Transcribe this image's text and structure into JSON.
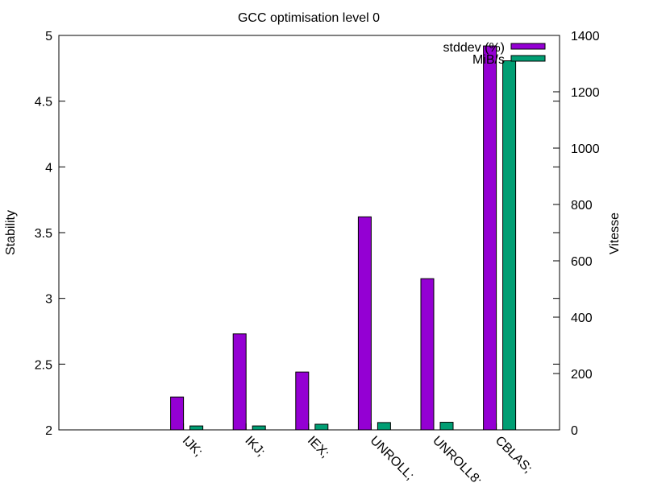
{
  "chart_data": {
    "type": "bar",
    "title": "GCC optimisation level 0",
    "ylabel": "Stability",
    "y2label": "Vitesse",
    "categories": [
      "IJK;",
      "IKJ;",
      "IEX;",
      "UNROLL;",
      "UNROLL8;",
      "CBLAS;"
    ],
    "ylim": [
      2,
      5
    ],
    "y2lim": [
      0,
      1400
    ],
    "yticks": [
      "2",
      "2.5",
      "3",
      "3.5",
      "4",
      "4.5",
      "5"
    ],
    "y2ticks": [
      "0",
      "200",
      "400",
      "600",
      "800",
      "1000",
      "1200",
      "1400"
    ],
    "grid": false,
    "legend_position": "top-right",
    "series": [
      {
        "name": "stddev (%)",
        "axis": "left",
        "color": "#9400d3",
        "values": [
          2.25,
          2.73,
          2.44,
          3.62,
          3.15,
          4.92
        ]
      },
      {
        "name": "MiB/s",
        "axis": "right",
        "color": "#009e73",
        "values": [
          14,
          14,
          20,
          26,
          27,
          1310
        ]
      }
    ]
  }
}
